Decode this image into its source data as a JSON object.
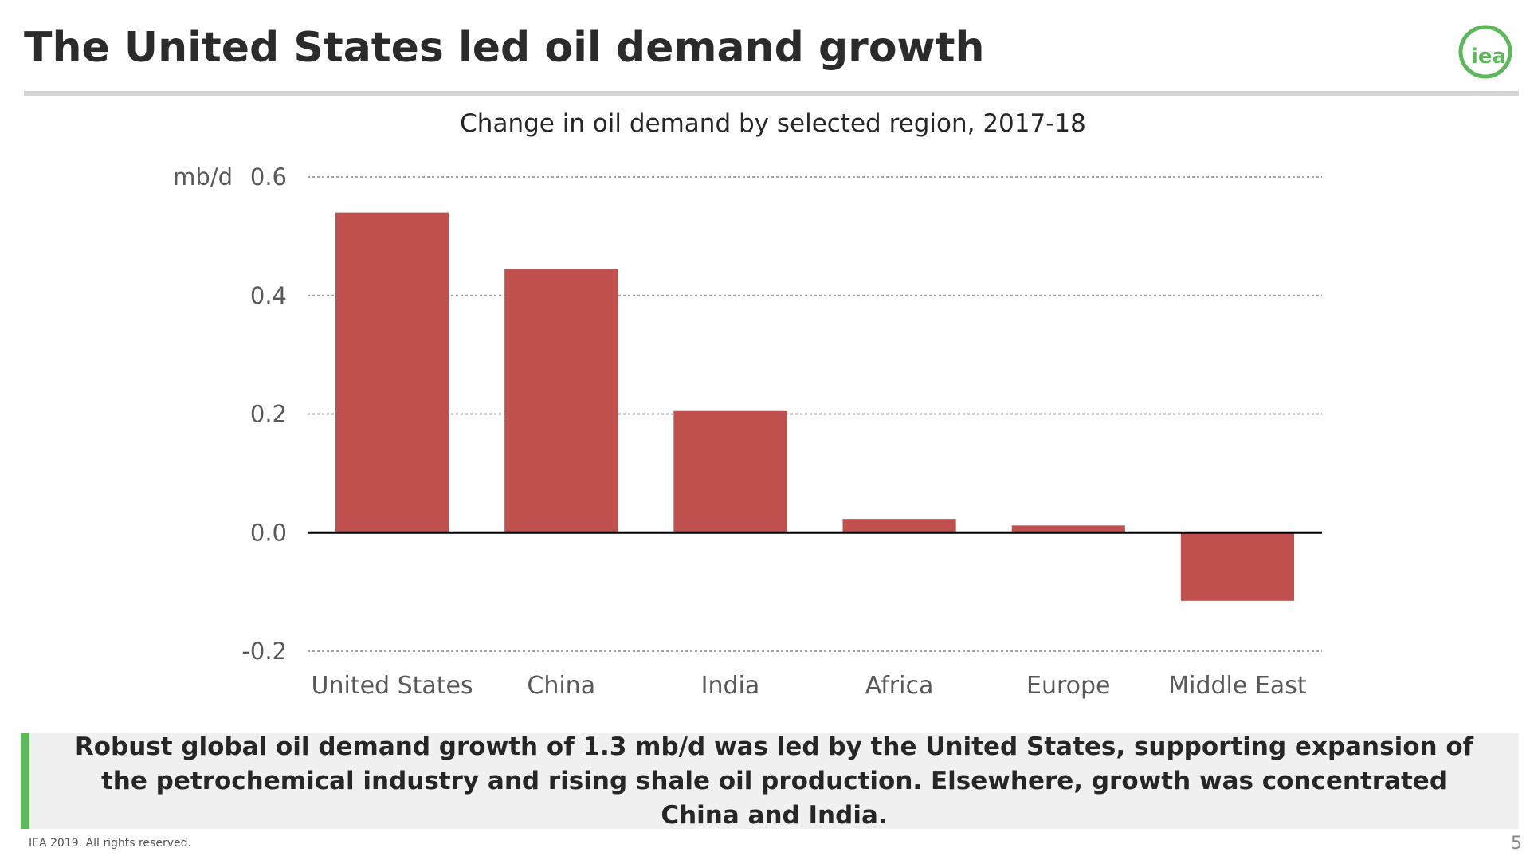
{
  "slide": {
    "title": "The United States led oil demand growth",
    "page_number": "5",
    "footer": "IEA 2019. All rights reserved."
  },
  "logo": {
    "text": "iea",
    "icon": "iea-logo-icon",
    "color": "#5db85c"
  },
  "callout": {
    "text": "Robust global oil demand growth of 1.3 mb/d was led by the United States, supporting expansion of the petrochemical industry and rising shale oil production. Elsewhere, growth was concentrated China and India.",
    "accent_color": "#5db85c"
  },
  "chart_data": {
    "type": "bar",
    "title": "Change in oil demand by selected region, 2017-18",
    "ylabel": "mb/d",
    "xlabel": "",
    "categories": [
      "United States",
      "China",
      "India",
      "Africa",
      "Europe",
      "Middle East"
    ],
    "values": [
      0.54,
      0.445,
      0.205,
      0.023,
      0.012,
      -0.115
    ],
    "ylim": [
      -0.2,
      0.6
    ],
    "yticks": [
      0.6,
      0.4,
      0.2,
      0.0,
      -0.2
    ],
    "ytick_labels": [
      "0.6",
      "0.4",
      "0.2",
      "0.0",
      "-0.2"
    ],
    "grid": true,
    "legend": "none",
    "bar_color": "#c0504d"
  }
}
